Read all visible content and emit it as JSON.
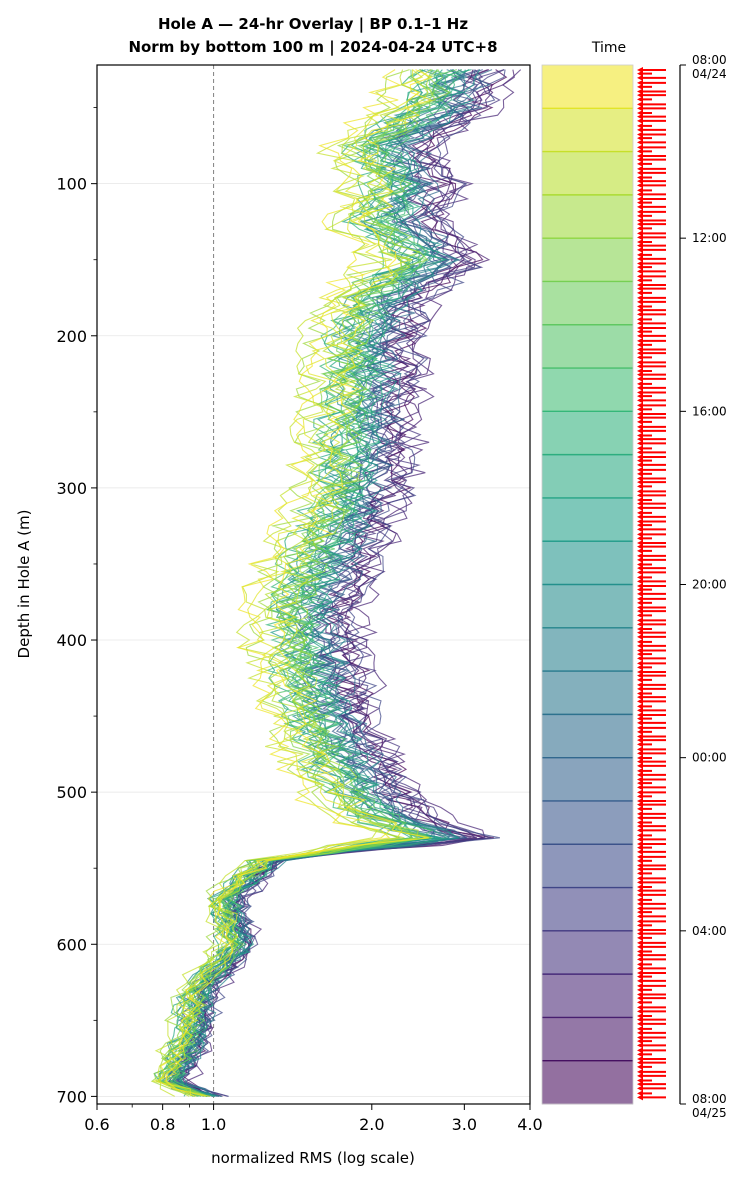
{
  "chart_data": {
    "type": "line",
    "title": "Hole A — 24-hr Overlay  |  BP 0.1–1 Hz",
    "subtitle": "Norm by bottom 100 m  |  2024-04-24 UTC+8",
    "xlabel": "normalized RMS  (log scale)",
    "ylabel": "Depth in Hole A (m)",
    "xscale": "log",
    "xlim": [
      0.6,
      4.0
    ],
    "ylim": [
      705,
      22
    ],
    "x_ticks": [
      0.6,
      0.8,
      1.0,
      2.0,
      3.0,
      4.0
    ],
    "x_tick_labels": [
      "0.6",
      "0.8",
      "1.0",
      "2.0",
      "3.0",
      "4.0"
    ],
    "y_ticks": [
      100,
      200,
      300,
      400,
      500,
      600,
      700
    ],
    "y_tick_labels": [
      "100",
      "200",
      "300",
      "400",
      "500",
      "600",
      "700"
    ],
    "reference_line_x": 1.0,
    "grid": true,
    "series_count": 48,
    "depth_profile": [
      {
        "depth": 25,
        "x": 2.75
      },
      {
        "depth": 50,
        "x": 2.6
      },
      {
        "depth": 75,
        "x": 2.05
      },
      {
        "depth": 100,
        "x": 2.25
      },
      {
        "depth": 125,
        "x": 2.1
      },
      {
        "depth": 150,
        "x": 2.5
      },
      {
        "depth": 175,
        "x": 2.0
      },
      {
        "depth": 200,
        "x": 1.9
      },
      {
        "depth": 250,
        "x": 1.85
      },
      {
        "depth": 300,
        "x": 1.8
      },
      {
        "depth": 340,
        "x": 1.6
      },
      {
        "depth": 380,
        "x": 1.45
      },
      {
        "depth": 420,
        "x": 1.5
      },
      {
        "depth": 460,
        "x": 1.6
      },
      {
        "depth": 500,
        "x": 1.85
      },
      {
        "depth": 515,
        "x": 2.05
      },
      {
        "depth": 530,
        "x": 2.6
      },
      {
        "depth": 545,
        "x": 1.25
      },
      {
        "depth": 570,
        "x": 1.05
      },
      {
        "depth": 600,
        "x": 1.1
      },
      {
        "depth": 630,
        "x": 0.93
      },
      {
        "depth": 660,
        "x": 0.9
      },
      {
        "depth": 690,
        "x": 0.82
      },
      {
        "depth": 700,
        "x": 0.95
      }
    ],
    "colorbar": {
      "label": "Time",
      "colormap": "viridis",
      "tick_labels": [
        {
          "line1": "08:00",
          "line2": "04/24"
        },
        {
          "line1": "12:00",
          "line2": ""
        },
        {
          "line1": "16:00",
          "line2": ""
        },
        {
          "line1": "20:00",
          "line2": ""
        },
        {
          "line1": "00:00",
          "line2": ""
        },
        {
          "line1": "04:00",
          "line2": ""
        },
        {
          "line1": "08:00",
          "line2": "04/25"
        }
      ]
    },
    "colors": {
      "arrow": "#ff0000",
      "reference_line": "#808080",
      "grid": "#e6e6e6"
    }
  }
}
